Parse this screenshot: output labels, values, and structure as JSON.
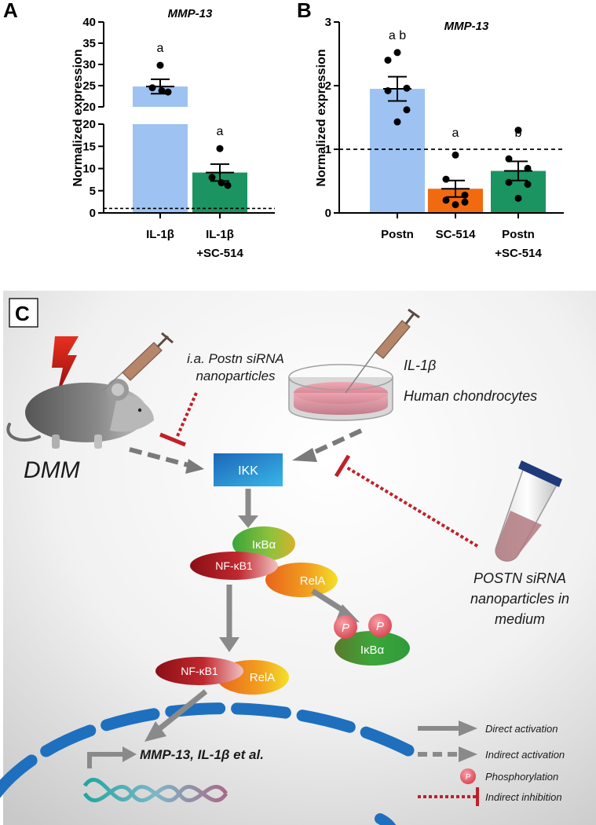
{
  "chart_data": [
    {
      "panel": "A",
      "type": "bar",
      "title": "MMP-13",
      "ylabel": "Normalized expression",
      "categories": [
        "IL-1β",
        "IL-1β +SC-514"
      ],
      "category_lines": [
        [
          "IL-1β"
        ],
        [
          "IL-1β",
          "+SC-514"
        ]
      ],
      "values": [
        24.8,
        9.1
      ],
      "sem": [
        1.7,
        1.9
      ],
      "points": [
        [
          29.8,
          24.5,
          23.5,
          23.8
        ],
        [
          14.5,
          8.0,
          6.2,
          6.8
        ]
      ],
      "significance": [
        "a",
        "a"
      ],
      "reference_line": 1,
      "y_axis_break": [
        20,
        20
      ],
      "ylim_lower": [
        0,
        20
      ],
      "ylim_upper": [
        20,
        40
      ],
      "yticks_lower": [
        "0",
        "5",
        "10",
        "15",
        "20"
      ],
      "yticks_upper": [
        "20",
        "25",
        "30",
        "35",
        "40"
      ],
      "colors": [
        "#9ec3f2",
        "#1b9461"
      ]
    },
    {
      "panel": "B",
      "type": "bar",
      "title": "MMP-13",
      "ylabel": "Normalized expression",
      "categories": [
        "Postn",
        "SC-514",
        "Postn +SC-514"
      ],
      "category_lines": [
        [
          "Postn"
        ],
        [
          "SC-514"
        ],
        [
          "Postn",
          "+SC-514"
        ]
      ],
      "values": [
        1.95,
        0.38,
        0.66
      ],
      "sem": [
        0.19,
        0.13,
        0.15
      ],
      "points": [
        [
          2.52,
          2.4,
          1.96,
          1.92,
          1.62,
          1.43
        ],
        [
          0.91,
          0.53,
          0.28,
          0.2,
          0.17,
          0.13
        ],
        [
          1.3,
          0.85,
          0.7,
          0.48,
          0.45,
          0.23
        ]
      ],
      "significance": [
        "a b",
        "a",
        "b"
      ],
      "reference_line": 1,
      "ylim": [
        0,
        3
      ],
      "yticks": [
        "0",
        "1",
        "2",
        "3"
      ],
      "colors": [
        "#9ec3f2",
        "#f26a10",
        "#1b9461"
      ]
    }
  ],
  "panel_labels": {
    "a": "A",
    "b": "B",
    "c": "C"
  },
  "diagram": {
    "ikk": "IKK",
    "ikba": "IκBα",
    "nfkb1": "NF-κB1",
    "rela": "RelA",
    "p": "P",
    "dmm": "DMM",
    "injection_label": [
      "i.a. Postn siRNA",
      "nanoparticles"
    ],
    "il1b": "IL-1β",
    "cells": "Human chondrocytes",
    "postn_label": [
      "POSTN siRNA",
      "nanoparticles in",
      "medium"
    ],
    "genes": "MMP-13, IL-1β et al."
  },
  "legend": [
    {
      "label": "Direct activation",
      "icon": "solid-arrow"
    },
    {
      "label": "Indirect activation",
      "icon": "dashed-arrow"
    },
    {
      "label": "Phosphorylation",
      "icon": "phospho-circle"
    },
    {
      "label": "Indirect inhibition",
      "icon": "dotted-inhibition"
    }
  ]
}
